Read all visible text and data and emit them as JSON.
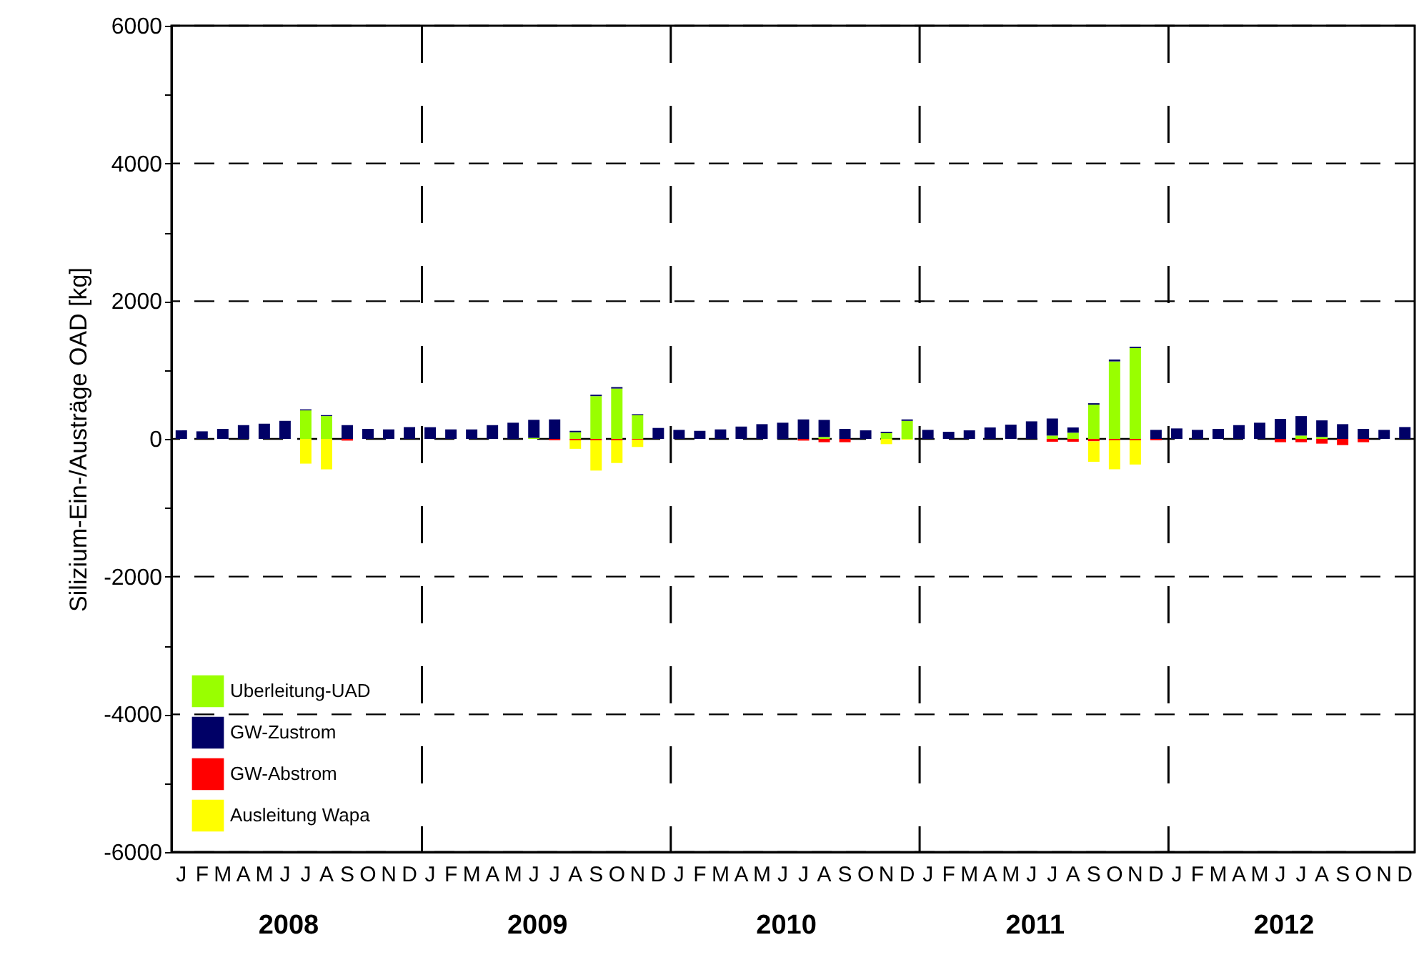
{
  "chart_data": {
    "type": "bar",
    "stacked": true,
    "ylabel": "Silizium-Ein-/Austräge OAD [kg]",
    "categories": [
      "J",
      "F",
      "M",
      "A",
      "M",
      "J",
      "J",
      "A",
      "S",
      "O",
      "N",
      "D",
      "J",
      "F",
      "M",
      "A",
      "M",
      "J",
      "J",
      "A",
      "S",
      "O",
      "N",
      "D",
      "J",
      "F",
      "M",
      "A",
      "M",
      "J",
      "J",
      "A",
      "S",
      "O",
      "N",
      "D",
      "J",
      "F",
      "M",
      "A",
      "M",
      "J",
      "J",
      "A",
      "S",
      "O",
      "N",
      "D",
      "J",
      "F",
      "M",
      "A",
      "M",
      "J",
      "J",
      "A",
      "S",
      "O",
      "N",
      "D"
    ],
    "annotations": [
      "2008",
      "2009",
      "2010",
      "2011",
      "2012"
    ],
    "series": [
      {
        "name": "Uberleitung-UAD",
        "color": "#99ff00",
        "values": [
          null,
          null,
          null,
          null,
          null,
          null,
          414,
          331,
          null,
          null,
          null,
          null,
          null,
          null,
          null,
          null,
          null,
          15,
          null,
          97,
          621,
          731,
          345,
          null,
          null,
          null,
          null,
          null,
          null,
          null,
          null,
          28,
          null,
          null,
          83,
          262,
          null,
          null,
          null,
          null,
          null,
          null,
          48,
          90,
          497,
          1125,
          1318,
          null,
          null,
          null,
          null,
          null,
          null,
          null,
          48,
          28,
          null,
          null,
          null,
          null
        ]
      },
      {
        "name": "GW-Zustrom",
        "color": "#000066",
        "values": [
          124,
          110,
          145,
          200,
          220,
          262,
          15,
          14,
          200,
          145,
          138,
          170,
          170,
          138,
          138,
          200,
          235,
          262,
          283,
          20,
          21,
          21,
          14,
          159,
          131,
          117,
          138,
          179,
          214,
          235,
          283,
          248,
          145,
          124,
          21,
          21,
          131,
          103,
          124,
          166,
          207,
          255,
          248,
          76,
          21,
          28,
          21,
          131,
          152,
          131,
          145,
          200,
          235,
          290,
          283,
          241,
          214,
          145,
          131,
          172
        ]
      },
      {
        "name": "GW-Abstrom",
        "color": "#ff0000",
        "values": [
          null,
          null,
          null,
          null,
          null,
          null,
          null,
          null,
          -25,
          null,
          null,
          null,
          null,
          null,
          null,
          null,
          null,
          null,
          -20,
          -20,
          -20,
          -20,
          -10,
          null,
          null,
          null,
          null,
          null,
          null,
          null,
          -25,
          -48,
          -48,
          null,
          null,
          null,
          null,
          null,
          null,
          null,
          null,
          null,
          -41,
          -41,
          -35,
          -20,
          -20,
          -20,
          null,
          null,
          null,
          null,
          null,
          -48,
          -48,
          -69,
          -90,
          -48,
          null,
          null
        ]
      },
      {
        "name": "Ausleitung Wapa",
        "color": "#ffff00",
        "values": [
          null,
          null,
          null,
          null,
          null,
          null,
          -359,
          -442,
          null,
          null,
          null,
          null,
          null,
          null,
          null,
          null,
          null,
          null,
          null,
          -124,
          -440,
          -330,
          -107,
          null,
          null,
          null,
          null,
          null,
          null,
          null,
          null,
          null,
          null,
          null,
          -76,
          -10,
          null,
          null,
          null,
          null,
          null,
          null,
          null,
          null,
          -297,
          -421,
          -352,
          null,
          null,
          null,
          null,
          null,
          null,
          null,
          null,
          null,
          null,
          null,
          null,
          null
        ]
      }
    ],
    "ylim": [
      -6000,
      6000
    ],
    "yticks": [
      -6000,
      {
        "value": -5000,
        "label": null
      },
      -4000,
      {
        "value": -3000,
        "label": null
      },
      -2000,
      {
        "value": -1000,
        "label": null
      },
      0,
      {
        "value": 1000,
        "label": null
      },
      2000,
      {
        "value": 3000,
        "label": null
      },
      4000,
      {
        "value": 5000,
        "label": null
      },
      6000
    ],
    "grid": true,
    "legend": "bottom left"
  }
}
